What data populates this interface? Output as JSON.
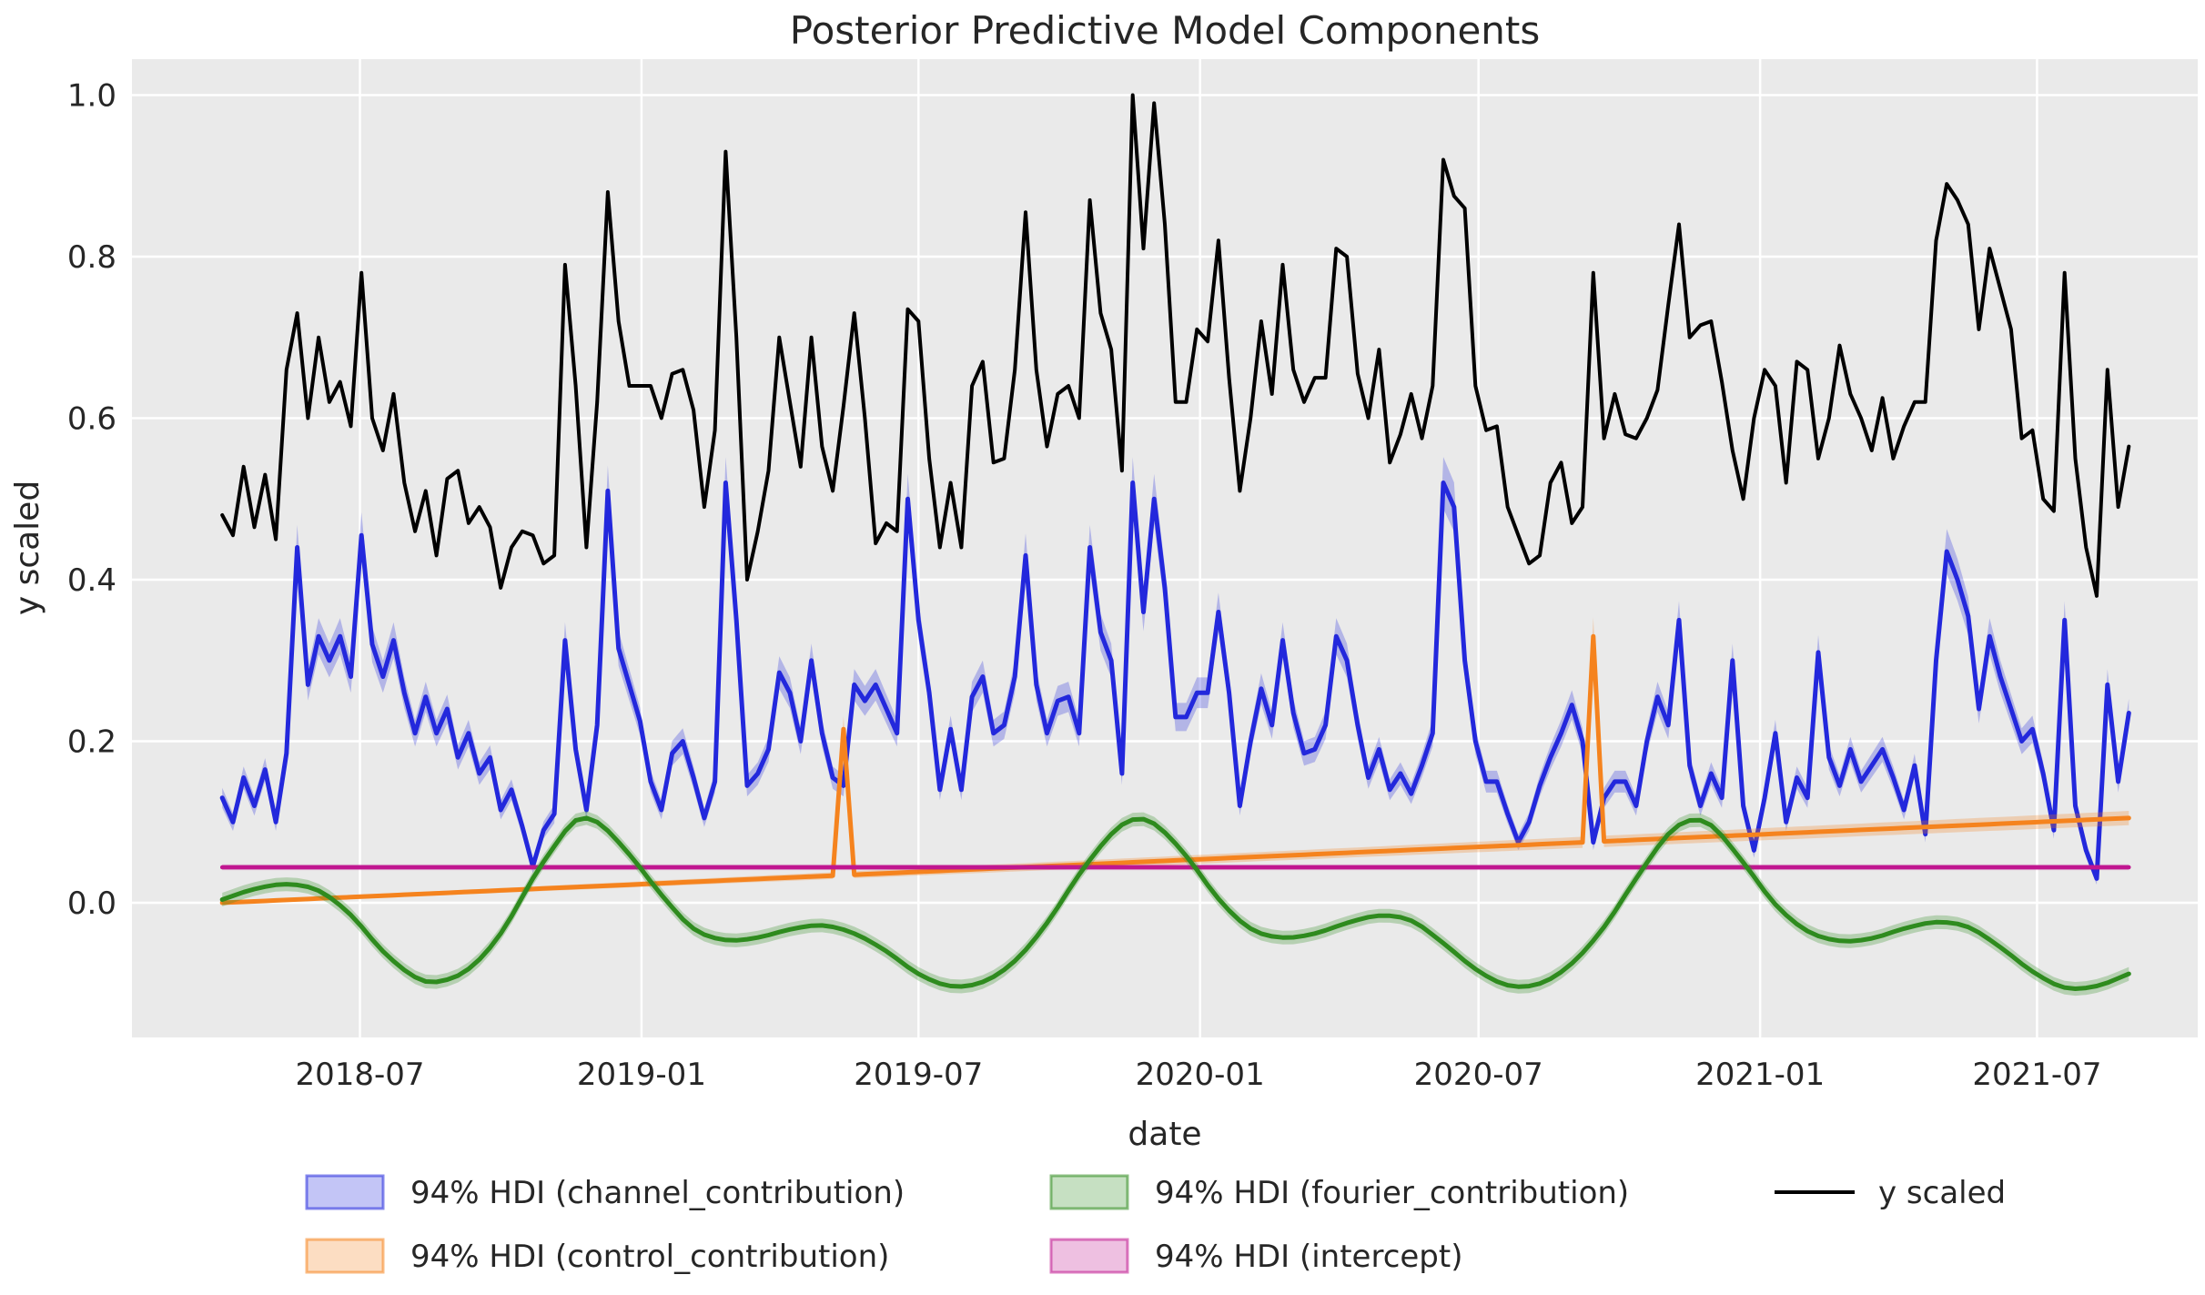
{
  "title": "Posterior Predictive Model Components",
  "axes": {
    "xlabel": "date",
    "ylabel": "y scaled",
    "x_ticks": [
      {
        "date": "2018-07-01",
        "label": "2018-07"
      },
      {
        "date": "2019-01-01",
        "label": "2019-01"
      },
      {
        "date": "2019-07-01",
        "label": "2019-07"
      },
      {
        "date": "2020-01-01",
        "label": "2020-01"
      },
      {
        "date": "2020-07-01",
        "label": "2020-07"
      },
      {
        "date": "2021-01-01",
        "label": "2021-01"
      },
      {
        "date": "2021-07-01",
        "label": "2021-07"
      }
    ],
    "y_ticks": [
      {
        "value": 1.0,
        "label": "1.0"
      },
      {
        "value": 0.8,
        "label": "0.8"
      },
      {
        "value": 0.6,
        "label": "0.6"
      },
      {
        "value": 0.4,
        "label": "0.4"
      },
      {
        "value": 0.2,
        "label": "0.2"
      },
      {
        "value": 0.0,
        "label": "0.0"
      }
    ]
  },
  "colors": {
    "figure_bg": "#ffffff",
    "plot_bg": "#eaeaea",
    "grid": "#ffffff",
    "text": "#262626",
    "y_scaled_line": "#000000",
    "channel_line": "#2328dc",
    "control_line": "#f5831e",
    "fourier_line": "#2e8b1e",
    "intercept_line": "#c01690",
    "band_alpha": 0.27
  },
  "legend": {
    "entries": [
      {
        "kind": "patch",
        "series": "channel",
        "label": "94% HDI (channel_contribution)",
        "col": 0,
        "row": 0
      },
      {
        "kind": "patch",
        "series": "control",
        "label": "94% HDI (control_contribution)",
        "col": 0,
        "row": 1
      },
      {
        "kind": "patch",
        "series": "fourier",
        "label": "94% HDI (fourier_contribution)",
        "col": 1,
        "row": 0
      },
      {
        "kind": "patch",
        "series": "intercept",
        "label": "94% HDI (intercept)",
        "col": 1,
        "row": 1
      },
      {
        "kind": "line",
        "series": "y_scaled",
        "label": "y scaled",
        "col": 2,
        "row": 0
      }
    ]
  },
  "chart_data": {
    "type": "line",
    "title": "Posterior Predictive Model Components",
    "xlabel": "date",
    "ylabel": "y scaled",
    "grid": true,
    "legend_position": "below",
    "start_date": "2018-04-02",
    "freq_days": 7,
    "n": 179,
    "xlim": [
      "2018-02-02",
      "2021-10-14"
    ],
    "ylim": [
      -0.1667,
      1.0445
    ],
    "series": [
      {
        "name": "y scaled",
        "key": "y_scaled",
        "style": "line",
        "values": [
          0.48,
          0.455,
          0.54,
          0.465,
          0.53,
          0.45,
          0.66,
          0.73,
          0.6,
          0.7,
          0.62,
          0.645,
          0.59,
          0.78,
          0.6,
          0.56,
          0.63,
          0.52,
          0.46,
          0.51,
          0.43,
          0.525,
          0.535,
          0.47,
          0.49,
          0.465,
          0.39,
          0.44,
          0.46,
          0.455,
          0.42,
          0.43,
          0.79,
          0.64,
          0.44,
          0.62,
          0.88,
          0.72,
          0.64,
          0.64,
          0.64,
          0.6,
          0.655,
          0.66,
          0.61,
          0.49,
          0.585,
          0.93,
          0.7,
          0.4,
          0.46,
          0.535,
          0.7,
          0.62,
          0.54,
          0.7,
          0.565,
          0.51,
          0.615,
          0.73,
          0.6,
          0.445,
          0.47,
          0.46,
          0.735,
          0.72,
          0.55,
          0.44,
          0.52,
          0.44,
          0.64,
          0.67,
          0.545,
          0.55,
          0.66,
          0.855,
          0.66,
          0.565,
          0.63,
          0.64,
          0.6,
          0.87,
          0.73,
          0.685,
          0.535,
          1.0,
          0.81,
          0.99,
          0.84,
          0.62,
          0.62,
          0.71,
          0.695,
          0.82,
          0.65,
          0.51,
          0.6,
          0.72,
          0.63,
          0.79,
          0.66,
          0.62,
          0.65,
          0.65,
          0.81,
          0.8,
          0.655,
          0.6,
          0.685,
          0.545,
          0.58,
          0.63,
          0.575,
          0.64,
          0.92,
          0.875,
          0.86,
          0.64,
          0.585,
          0.59,
          0.49,
          0.455,
          0.42,
          0.43,
          0.52,
          0.545,
          0.47,
          0.49,
          0.78,
          0.575,
          0.63,
          0.58,
          0.575,
          0.6,
          0.635,
          0.74,
          0.84,
          0.7,
          0.715,
          0.72,
          0.645,
          0.56,
          0.5,
          0.6,
          0.66,
          0.64,
          0.52,
          0.67,
          0.66,
          0.55,
          0.6,
          0.69,
          0.63,
          0.6,
          0.56,
          0.625,
          0.55,
          0.59,
          0.62,
          0.62,
          0.82,
          0.89,
          0.87,
          0.84,
          0.71,
          0.81,
          0.76,
          0.71,
          0.575,
          0.585,
          0.5,
          0.485,
          0.78,
          0.55,
          0.44,
          0.38,
          0.66,
          0.49,
          0.565
        ]
      },
      {
        "name": "94% HDI (channel_contribution)",
        "key": "channel",
        "style": "line+band",
        "hdi_half_base": 0.006,
        "hdi_half_scale": 0.05,
        "values": [
          0.13,
          0.1,
          0.155,
          0.12,
          0.165,
          0.1,
          0.185,
          0.44,
          0.27,
          0.33,
          0.3,
          0.33,
          0.28,
          0.455,
          0.32,
          0.28,
          0.325,
          0.26,
          0.21,
          0.255,
          0.21,
          0.24,
          0.18,
          0.21,
          0.16,
          0.18,
          0.115,
          0.14,
          0.095,
          0.045,
          0.09,
          0.11,
          0.325,
          0.19,
          0.115,
          0.22,
          0.51,
          0.315,
          0.27,
          0.225,
          0.15,
          0.115,
          0.185,
          0.2,
          0.155,
          0.105,
          0.15,
          0.52,
          0.35,
          0.145,
          0.16,
          0.19,
          0.285,
          0.26,
          0.2,
          0.3,
          0.21,
          0.155,
          0.145,
          0.27,
          0.25,
          0.27,
          0.24,
          0.21,
          0.5,
          0.35,
          0.26,
          0.14,
          0.215,
          0.14,
          0.255,
          0.28,
          0.21,
          0.22,
          0.28,
          0.43,
          0.27,
          0.21,
          0.25,
          0.255,
          0.21,
          0.44,
          0.335,
          0.3,
          0.16,
          0.52,
          0.36,
          0.5,
          0.39,
          0.23,
          0.23,
          0.26,
          0.26,
          0.36,
          0.26,
          0.12,
          0.2,
          0.265,
          0.22,
          0.325,
          0.235,
          0.185,
          0.19,
          0.22,
          0.33,
          0.3,
          0.22,
          0.155,
          0.19,
          0.14,
          0.16,
          0.135,
          0.17,
          0.21,
          0.52,
          0.49,
          0.3,
          0.2,
          0.15,
          0.15,
          0.11,
          0.075,
          0.1,
          0.145,
          0.18,
          0.21,
          0.245,
          0.2,
          0.075,
          0.13,
          0.15,
          0.15,
          0.12,
          0.2,
          0.255,
          0.22,
          0.35,
          0.17,
          0.12,
          0.16,
          0.13,
          0.3,
          0.12,
          0.065,
          0.13,
          0.21,
          0.1,
          0.155,
          0.13,
          0.31,
          0.18,
          0.145,
          0.19,
          0.15,
          0.17,
          0.19,
          0.155,
          0.115,
          0.17,
          0.085,
          0.3,
          0.435,
          0.4,
          0.355,
          0.24,
          0.33,
          0.28,
          0.24,
          0.2,
          0.215,
          0.16,
          0.09,
          0.35,
          0.12,
          0.065,
          0.03,
          0.27,
          0.15,
          0.235
        ]
      },
      {
        "name": "94% HDI (control_contribution)",
        "key": "control",
        "style": "line+band",
        "trend_start": 0.0,
        "trend_end": 0.105,
        "hdi_half_base": 0.002,
        "hdi_half_scale": 0.065,
        "events": [
          {
            "date": "2019-05-13",
            "value": 0.215
          },
          {
            "date": "2020-09-14",
            "value": 0.33
          }
        ]
      },
      {
        "name": "94% HDI (fourier_contribution)",
        "key": "fourier",
        "style": "line+band",
        "hdi_half": 0.0085,
        "keypoints": [
          [
            "2018-04-02",
            0.004
          ],
          [
            "2018-04-23",
            0.017
          ],
          [
            "2018-05-14",
            0.023
          ],
          [
            "2018-06-04",
            0.015
          ],
          [
            "2018-06-25",
            -0.015
          ],
          [
            "2018-07-16",
            -0.06
          ],
          [
            "2018-08-06",
            -0.092
          ],
          [
            "2018-08-20",
            -0.098
          ],
          [
            "2018-09-10",
            -0.082
          ],
          [
            "2018-10-01",
            -0.038
          ],
          [
            "2018-10-22",
            0.03
          ],
          [
            "2018-11-05",
            0.07
          ],
          [
            "2018-11-19",
            0.102
          ],
          [
            "2018-12-03",
            0.1
          ],
          [
            "2018-12-24",
            0.06
          ],
          [
            "2019-01-14",
            0.01
          ],
          [
            "2019-02-04",
            -0.032
          ],
          [
            "2019-02-25",
            -0.046
          ],
          [
            "2019-03-18",
            -0.043
          ],
          [
            "2019-04-08",
            -0.033
          ],
          [
            "2019-04-29",
            -0.028
          ],
          [
            "2019-05-20",
            -0.038
          ],
          [
            "2019-06-10",
            -0.06
          ],
          [
            "2019-07-01",
            -0.088
          ],
          [
            "2019-07-22",
            -0.103
          ],
          [
            "2019-08-12",
            -0.098
          ],
          [
            "2019-09-02",
            -0.072
          ],
          [
            "2019-09-23",
            -0.025
          ],
          [
            "2019-10-14",
            0.035
          ],
          [
            "2019-11-04",
            0.085
          ],
          [
            "2019-11-18",
            0.103
          ],
          [
            "2019-12-02",
            0.098
          ],
          [
            "2019-12-23",
            0.058
          ],
          [
            "2020-01-13",
            0.005
          ],
          [
            "2020-02-03",
            -0.032
          ],
          [
            "2020-02-24",
            -0.043
          ],
          [
            "2020-03-16",
            -0.038
          ],
          [
            "2020-04-06",
            -0.025
          ],
          [
            "2020-04-27",
            -0.016
          ],
          [
            "2020-05-18",
            -0.022
          ],
          [
            "2020-06-08",
            -0.05
          ],
          [
            "2020-06-29",
            -0.082
          ],
          [
            "2020-07-20",
            -0.102
          ],
          [
            "2020-08-10",
            -0.1
          ],
          [
            "2020-08-31",
            -0.075
          ],
          [
            "2020-09-21",
            -0.03
          ],
          [
            "2020-10-12",
            0.03
          ],
          [
            "2020-11-02",
            0.085
          ],
          [
            "2020-11-16",
            0.102
          ],
          [
            "2020-11-30",
            0.096
          ],
          [
            "2020-12-21",
            0.05
          ],
          [
            "2021-01-11",
            -0.002
          ],
          [
            "2021-02-01",
            -0.035
          ],
          [
            "2021-02-22",
            -0.047
          ],
          [
            "2021-03-15",
            -0.044
          ],
          [
            "2021-04-05",
            -0.032
          ],
          [
            "2021-04-26",
            -0.024
          ],
          [
            "2021-05-17",
            -0.03
          ],
          [
            "2021-06-07",
            -0.055
          ],
          [
            "2021-06-28",
            -0.085
          ],
          [
            "2021-07-19",
            -0.105
          ],
          [
            "2021-08-09",
            -0.103
          ],
          [
            "2021-08-30",
            -0.088
          ]
        ]
      },
      {
        "name": "94% HDI (intercept)",
        "key": "intercept",
        "style": "line+band",
        "value": 0.044,
        "hdi_half": 0.0035
      }
    ]
  }
}
